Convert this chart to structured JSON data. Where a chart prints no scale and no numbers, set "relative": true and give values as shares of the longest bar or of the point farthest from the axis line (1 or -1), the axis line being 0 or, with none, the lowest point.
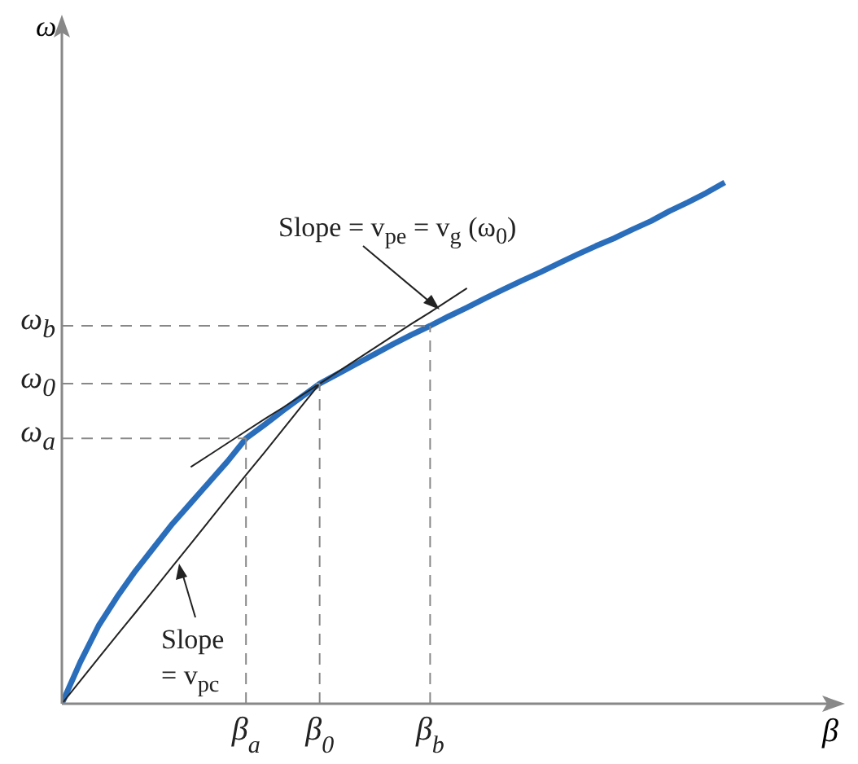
{
  "chart_data": {
    "type": "line",
    "relative": true,
    "xlabel": "β",
    "ylabel": "ω",
    "categories": [
      null,
      null,
      null,
      null,
      null,
      null,
      null,
      null,
      null,
      null,
      "β$_{a}$",
      null,
      null,
      null,
      "β$_{0}$",
      null,
      null,
      null,
      null,
      null,
      "β$_{b}$",
      null,
      null,
      null,
      null,
      null,
      null,
      null,
      null,
      null,
      null,
      null,
      null,
      null,
      null,
      null,
      null,
      null,
      null,
      null,
      null,
      null,
      null
    ],
    "marker": "none",
    "series": [
      {
        "color": "#2a6ebb",
        "line_style": "solid",
        "values": [
          0,
          0.08,
          0.15,
          0.205,
          0.255,
          0.3,
          0.345,
          0.385,
          0.425,
          0.465,
          0.509,
          0.535,
          0.562,
          0.588,
          0.614,
          0.633,
          0.652,
          0.671,
          0.69,
          0.708,
          0.725,
          0.743,
          0.76,
          0.778,
          0.795,
          0.812,
          0.828,
          0.845,
          0.862,
          0.878,
          0.893,
          0.91,
          0.926,
          0.945,
          0.962,
          0.98,
          1,
          null,
          null,
          null,
          null,
          null,
          null
        ]
      },
      {
        "color": "#222222",
        "line_style": "solid",
        "values": [
          null,
          null,
          null,
          null,
          null,
          null,
          null,
          0.454,
          0.477,
          0.5,
          0.523,
          0.546,
          0.568,
          0.591,
          0.614,
          0.637,
          0.66,
          0.683,
          0.706,
          0.729,
          0.751,
          0.774,
          0.797,
          null,
          null,
          null,
          null,
          null,
          null,
          null,
          null,
          null,
          null,
          null,
          null,
          null,
          null,
          null,
          null,
          null,
          null,
          null,
          null
        ]
      },
      {
        "color": "#222222",
        "line_style": "solid",
        "values": [
          0,
          0.044,
          0.088,
          0.132,
          0.175,
          0.219,
          0.263,
          0.307,
          0.351,
          0.395,
          0.439,
          0.482,
          0.526,
          0.57,
          0.614,
          null,
          null,
          null,
          null,
          null,
          null,
          null,
          null,
          null,
          null,
          null,
          null,
          null,
          null,
          null,
          null,
          null,
          null,
          null,
          null,
          null,
          null,
          null,
          null,
          null,
          null,
          null,
          null
        ]
      },
      {
        "color": "#888888",
        "line_style": "dashed",
        "values": [
          0.509,
          0.509,
          0.509,
          0.509,
          0.509,
          0.509,
          0.509,
          0.509,
          0.509,
          0.509,
          0.509,
          null,
          null,
          null,
          null,
          null,
          null,
          null,
          null,
          null,
          null,
          null,
          null,
          null,
          null,
          null,
          null,
          null,
          null,
          null,
          null,
          null,
          null,
          null,
          null,
          null,
          null,
          null,
          null,
          null,
          null,
          null,
          null
        ]
      },
      {
        "color": "#888888",
        "line_style": "dashed",
        "values": [
          0.614,
          0.614,
          0.614,
          0.614,
          0.614,
          0.614,
          0.614,
          0.614,
          0.614,
          0.614,
          0.614,
          0.614,
          0.614,
          0.614,
          0.614,
          null,
          null,
          null,
          null,
          null,
          null,
          null,
          null,
          null,
          null,
          null,
          null,
          null,
          null,
          null,
          null,
          null,
          null,
          null,
          null,
          null,
          null,
          null,
          null,
          null,
          null,
          null,
          null
        ]
      },
      {
        "color": "#888888",
        "line_style": "dashed",
        "values": [
          0.725,
          0.725,
          0.725,
          0.725,
          0.725,
          0.725,
          0.725,
          0.725,
          0.725,
          0.725,
          0.725,
          0.725,
          0.725,
          0.725,
          0.725,
          0.725,
          0.725,
          0.725,
          0.725,
          0.725,
          0.725,
          null,
          null,
          null,
          null,
          null,
          null,
          null,
          null,
          null,
          null,
          null,
          null,
          null,
          null,
          null,
          null,
          null,
          null,
          null,
          null,
          null,
          null
        ]
      }
    ],
    "annotations": [
      "Slope = v$_{pe}$ = v$_{g}$ (ω$_{0}$)",
      "Slope = v$_{pc}$",
      "ω$_{a}$",
      "ω$_{0}$",
      "ω$_{b}$"
    ]
  }
}
